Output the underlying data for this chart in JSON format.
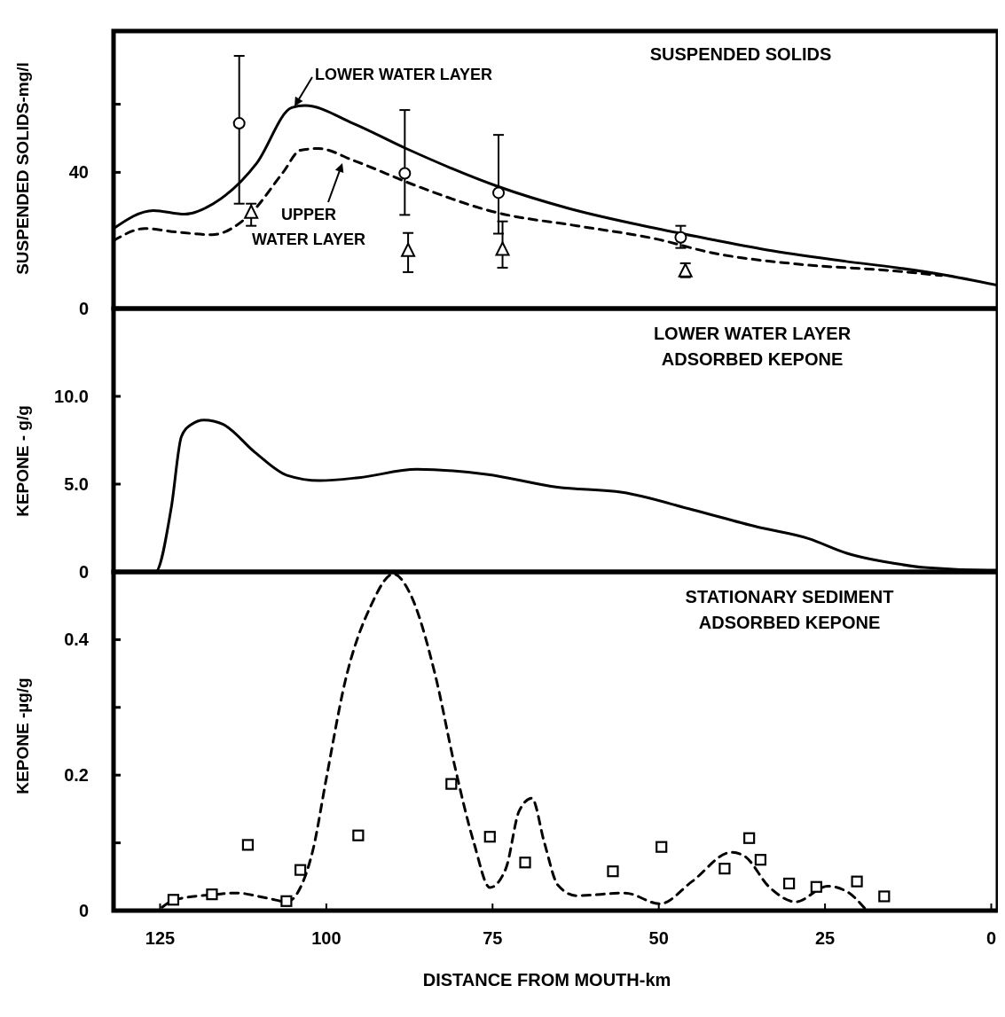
{
  "chart_data": [
    {
      "type": "line",
      "title": "SUSPENDED SOLIDS",
      "ylabel": "SUSPENDED SOLIDS-mg/l",
      "xlim": [
        132,
        -1
      ],
      "ylim": [
        0,
        81.5
      ],
      "yticks": [
        0,
        40,
        {
          "value": 60,
          "label": null
        }
      ],
      "tick_labels": "y",
      "grid": false,
      "series": [
        {
          "name": "LOWER WATER LAYER",
          "color": "#000000",
          "line_style": "solid",
          "x": [
            132,
            126,
            121.3,
            117,
            110.5,
            105.2,
            103.2,
            96,
            88,
            74.4,
            63.7,
            50.3,
            42.3,
            33,
            22,
            14.2,
            7.5,
            -1
          ],
          "values": [
            23.5,
            28.8,
            27.7,
            30.8,
            42.6,
            59,
            59.6,
            54.4,
            47,
            36,
            29.5,
            23.5,
            20.4,
            17,
            13.9,
            12,
            10,
            6.8
          ]
        },
        {
          "name": "UPPER WATER LAYER",
          "color": "#000000",
          "line_style": "dashed",
          "x": [
            132,
            127.3,
            122.6,
            117.2,
            111.9,
            106.5,
            103.9,
            101.2,
            95.8,
            86.4,
            74.4,
            62.3,
            50.3,
            42.3,
            28.9,
            15.5,
            7.5
          ],
          "values": [
            19.9,
            23.5,
            22.5,
            21.7,
            26.9,
            40,
            46.5,
            47,
            43.4,
            36,
            28.2,
            24.3,
            20.4,
            16.5,
            13,
            11.2,
            9.7
          ]
        },
        {
          "type": "scatter",
          "color": "#000000",
          "marker": "circle",
          "x": [
            113.1,
            88.2,
            74.1,
            46.7
          ],
          "values": [
            54.4,
            39.7,
            34,
            20.9
          ],
          "errors": [
            [
              30.8,
              74.2
            ],
            [
              27.5,
              58.3
            ],
            [
              22,
              51
            ],
            [
              17.8,
              24.3
            ]
          ]
        },
        {
          "type": "scatter",
          "color": "#000000",
          "marker": "triangle",
          "x": [
            111.3,
            87.7,
            73.5,
            46
          ],
          "values": [
            28.2,
            17,
            17.3,
            11
          ],
          "errors": [
            [
              24.3,
              30.8
            ],
            [
              10.7,
              22.2
            ],
            [
              12,
              25.6
            ],
            [
              9.2,
              13.3
            ]
          ]
        }
      ]
    },
    {
      "type": "line",
      "title": "LOWER WATER LAYER ADSORBED KEPONE",
      "ylabel": "KEPONE - g/g",
      "xlim": [
        132,
        -1
      ],
      "ylim": [
        0,
        15
      ],
      "yticks": [
        0,
        {
          "value": 5,
          "label": "5.0"
        },
        {
          "value": 10,
          "label": "10.0"
        }
      ],
      "tick_labels": "y",
      "grid": false,
      "series": [
        {
          "color": "#000000",
          "line_style": "solid",
          "x": [
            132,
            125.7,
            123.3,
            121.8,
            120.3,
            118.4,
            115.5,
            110.7,
            105.9,
            101,
            95.1,
            86.4,
            75.9,
            65.2,
            55.5,
            45,
            35.2,
            27.5,
            21.7,
            14,
            10.1,
            0.4,
            -1
          ],
          "values": [
            0,
            0,
            3.7,
            7.7,
            8.4,
            8.65,
            8.4,
            6.8,
            5.5,
            5.2,
            5.37,
            5.84,
            5.56,
            4.82,
            4.53,
            3.55,
            2.56,
            1.9,
            1.06,
            0.45,
            0.25,
            0.1,
            0.1
          ]
        }
      ]
    },
    {
      "type": "line",
      "title": "STATIONARY SEDIMENT ADSORBED KEPONE",
      "ylabel": "KEPONE -µg/g",
      "xlabel": "DISTANCE FROM MOUTH-km",
      "xlim": [
        132,
        -1
      ],
      "xticks": [
        125,
        100,
        75,
        50,
        25,
        0
      ],
      "ylim": [
        0,
        0.5
      ],
      "yticks": [
        0,
        {
          "value": 0.1,
          "label": null
        },
        0.2,
        {
          "value": 0.3,
          "label": null
        },
        0.4
      ],
      "grid": false,
      "series": [
        {
          "color": "#000000",
          "line_style": "dashed",
          "x": [
            124.7,
            122.8,
            116.5,
            113.6,
            108.7,
            105.9,
            103.9,
            102,
            100,
            97.2,
            93.3,
            89.9,
            87.5,
            83.6,
            80.7,
            77.8,
            75.4,
            73,
            71,
            69.1,
            67.2,
            65.2,
            62.4,
            55.1,
            49.8,
            45,
            39.1,
            37.2,
            33.3,
            29.4,
            24.6,
            21.7,
            18.9
          ],
          "values": [
            0.005,
            0.016,
            0.024,
            0.026,
            0.018,
            0.013,
            0.034,
            0.09,
            0.195,
            0.337,
            0.45,
            0.497,
            0.47,
            0.347,
            0.214,
            0.1,
            0.034,
            0.062,
            0.147,
            0.166,
            0.1,
            0.038,
            0.022,
            0.026,
            0.01,
            0.043,
            0.086,
            0.081,
            0.034,
            0.013,
            0.036,
            0.028,
            0.002
          ]
        },
        {
          "type": "scatter",
          "color": "#000000",
          "marker": "square",
          "x": [
            123,
            117.2,
            111.8,
            106,
            103.9,
            95.2,
            81.2,
            75.4,
            70.1,
            56.9,
            49.6,
            40.1,
            36.4,
            34.7,
            30.4,
            26.3,
            20.2,
            16.1
          ],
          "values": [
            0.016,
            0.024,
            0.097,
            0.014,
            0.06,
            0.111,
            0.187,
            0.109,
            0.071,
            0.058,
            0.094,
            0.062,
            0.107,
            0.075,
            0.04,
            0.035,
            0.043,
            0.021
          ]
        }
      ]
    }
  ]
}
